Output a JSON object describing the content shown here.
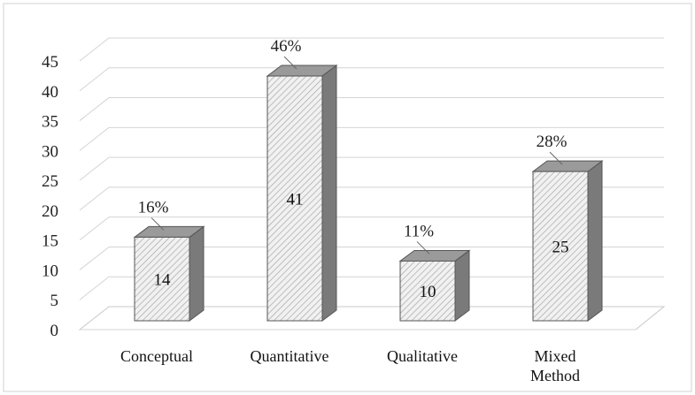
{
  "chart_data": {
    "type": "bar",
    "categories": [
      "Conceptual",
      "Quantitative",
      "Qualitative",
      "Mixed Method"
    ],
    "category_lines": [
      [
        "Conceptual"
      ],
      [
        "Quantitative"
      ],
      [
        "Qualitative"
      ],
      [
        "Mixed",
        "Method"
      ]
    ],
    "values": [
      14,
      41,
      10,
      25
    ],
    "value_labels": [
      "14",
      "41",
      "10",
      "25"
    ],
    "percent_labels": [
      "16%",
      "46%",
      "11%",
      "28%"
    ],
    "ylim": [
      0,
      45
    ],
    "yticks": [
      0,
      5,
      10,
      15,
      20,
      25,
      30,
      35,
      40,
      45
    ],
    "grid": true,
    "style": "3d-column",
    "colors": {
      "bar_front_pattern": "#ececec",
      "bar_side": "#7a7a7a",
      "bar_top": "#9a9a9a",
      "grid": "#d4d4d4"
    }
  }
}
